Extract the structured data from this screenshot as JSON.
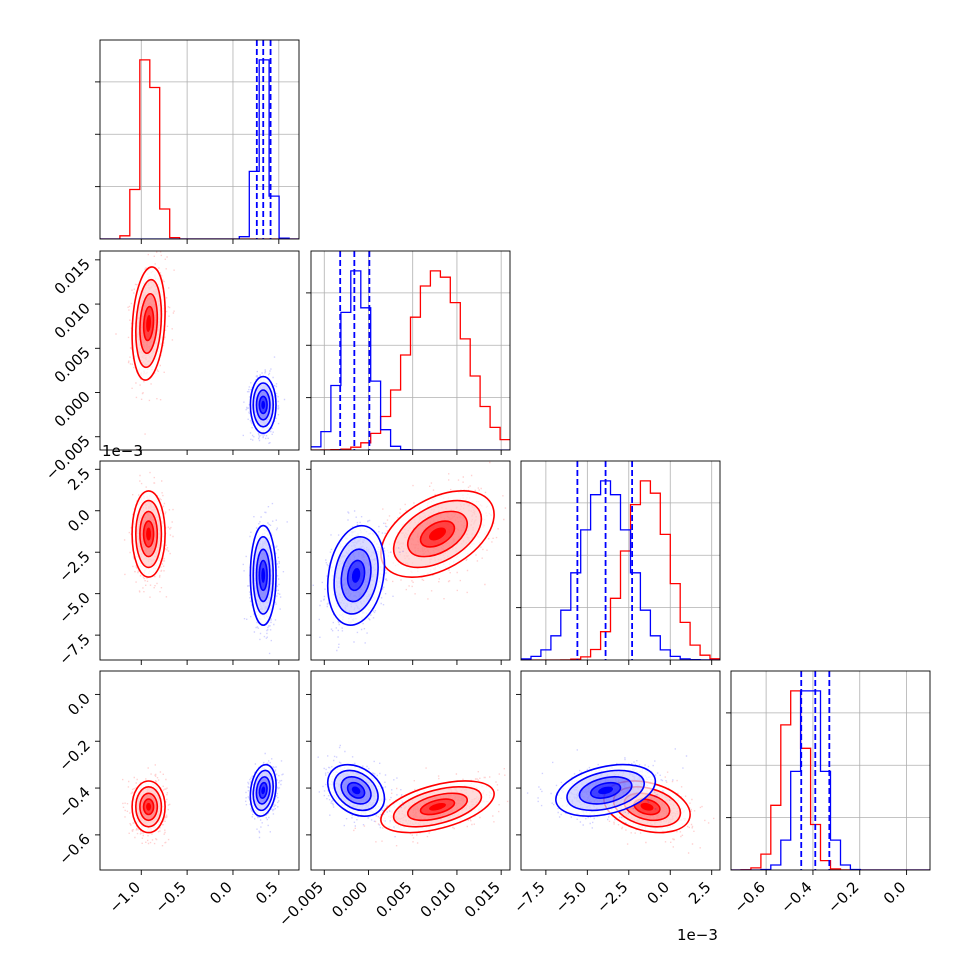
{
  "chart_data": {
    "type": "corner",
    "variables": [
      {
        "range": [
          -1.45,
          0.72
        ],
        "ticks": [
          -1.0,
          -0.5,
          0.0,
          0.5
        ],
        "tick_labels": [
          "−1.0",
          "−0.5",
          "0.0",
          "0.5"
        ],
        "offset": ""
      },
      {
        "range": [
          -0.0065,
          0.016
        ],
        "ticks": [
          -0.005,
          0.0,
          0.005,
          0.01,
          0.015
        ],
        "tick_labels": [
          "−0.005",
          "0.000",
          "0.005",
          "0.010",
          "0.015"
        ],
        "offset": ""
      },
      {
        "range": [
          -9.0,
          3.0
        ],
        "ticks": [
          -7.5,
          -5.0,
          -2.5,
          0.0,
          2.5
        ],
        "tick_labels": [
          "−7.5",
          "−5.0",
          "−2.5",
          "0.0",
          "2.5"
        ],
        "offset": "1e−3"
      },
      {
        "range": [
          -0.75,
          0.1
        ],
        "ticks": [
          -0.6,
          -0.4,
          -0.2,
          0.0
        ],
        "tick_labels": [
          "−0.6",
          "−0.4",
          "−0.2",
          "0.0"
        ],
        "offset": ""
      }
    ],
    "series": [
      {
        "color": "#ff0000",
        "means": [
          -0.92,
          0.0078,
          -1.4,
          -0.48
        ],
        "stds": [
          0.09,
          0.0032,
          1.3,
          0.055
        ],
        "correlations": {
          "0-1": 0.2,
          "1-2": 0.45,
          "1-3": 0.5,
          "2-3": -0.3
        }
      },
      {
        "color": "#0000ff",
        "means": [
          0.33,
          -0.0014,
          -3.9,
          -0.41
        ],
        "stds": [
          0.07,
          0.0016,
          1.5,
          0.055
        ],
        "correlations": {
          "0-1": 0.0,
          "0-3": 0.2,
          "1-2": 0.2,
          "1-3": -0.3,
          "2-3": 0.35
        }
      }
    ],
    "quantile_lines": {
      "color": "#0000ff",
      "values": [
        [
          0.26,
          0.33,
          0.41
        ],
        [
          -0.0032,
          -0.0016,
          0.0001
        ],
        [
          -5.6,
          -3.9,
          -2.3
        ],
        [
          -0.45,
          -0.39,
          -0.33
        ]
      ]
    },
    "grid": true
  }
}
